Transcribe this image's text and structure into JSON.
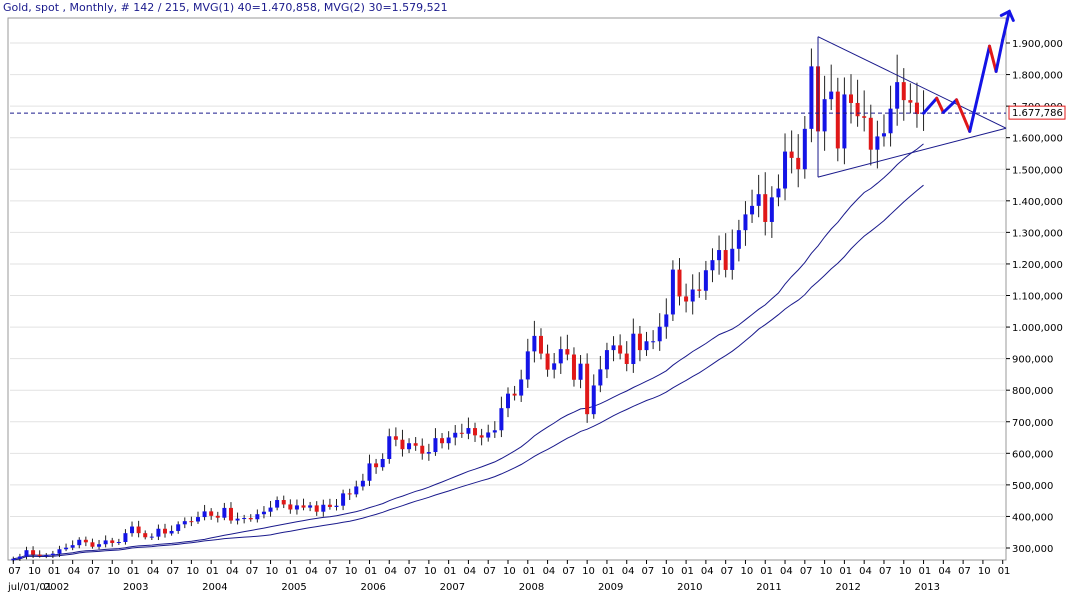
{
  "header": {
    "instrument": "Gold, spot",
    "period": "Monthly",
    "bar_count": "# 142 / 215",
    "mvg1": "MVG(1) 40=1.470,858",
    "mvg2": "MVG(2) 30=1.579,521"
  },
  "chart_data": {
    "type": "candlestick",
    "title": "Gold, spot , Monthly, # 142 / 215",
    "ylim": [
      250,
      2000
    ],
    "y_ticks": [
      300,
      400,
      500,
      600,
      700,
      800,
      900,
      1000,
      1100,
      1200,
      1300,
      1400,
      1500,
      1600,
      1700,
      1800,
      1900
    ],
    "y_tick_labels": [
      "300,000",
      "400,000",
      "500,000",
      "600,000",
      "700,000",
      "800,000",
      "900,000",
      "1.000,000",
      "1.100,000",
      "1.200,000",
      "1.300,000",
      "1.400,000",
      "1.500,000",
      "1.600,000",
      "1.700,000",
      "1.800,000",
      "1.900,000"
    ],
    "x_start": "2001-07",
    "x_end": "2014-01",
    "year_labels": [
      "jul/01/01",
      "2002",
      "2003",
      "2004",
      "2005",
      "2006",
      "2007",
      "2008",
      "2009",
      "2010",
      "2011",
      "2012",
      "2013"
    ],
    "month_labels": [
      "07",
      "10",
      "01",
      "04",
      "07",
      "10"
    ],
    "last_price": 1677.786,
    "last_price_label": "1.677,786",
    "colors": {
      "up": "#1414e6",
      "down": "#e01818",
      "ma": "#1a1a8c",
      "projection_up": "#1414e6",
      "projection_down": "#e01818",
      "dash": "#1a1a8c"
    },
    "monthly_close": [
      [
        "2001-07",
        266
      ],
      [
        "2001-08",
        273
      ],
      [
        "2001-09",
        293
      ],
      [
        "2001-10",
        279
      ],
      [
        "2001-11",
        275
      ],
      [
        "2001-12",
        277
      ],
      [
        "2002-01",
        282
      ],
      [
        "2002-02",
        296
      ],
      [
        "2002-03",
        301
      ],
      [
        "2002-04",
        309
      ],
      [
        "2002-05",
        326
      ],
      [
        "2002-06",
        318
      ],
      [
        "2002-07",
        304
      ],
      [
        "2002-08",
        312
      ],
      [
        "2002-09",
        324
      ],
      [
        "2002-10",
        316
      ],
      [
        "2002-11",
        319
      ],
      [
        "2002-12",
        347
      ],
      [
        "2003-01",
        368
      ],
      [
        "2003-02",
        347
      ],
      [
        "2003-03",
        334
      ],
      [
        "2003-04",
        336
      ],
      [
        "2003-05",
        361
      ],
      [
        "2003-06",
        346
      ],
      [
        "2003-07",
        354
      ],
      [
        "2003-08",
        375
      ],
      [
        "2003-09",
        385
      ],
      [
        "2003-10",
        384
      ],
      [
        "2003-11",
        398
      ],
      [
        "2003-12",
        416
      ],
      [
        "2004-01",
        402
      ],
      [
        "2004-02",
        396
      ],
      [
        "2004-03",
        427
      ],
      [
        "2004-04",
        387
      ],
      [
        "2004-05",
        393
      ],
      [
        "2004-06",
        395
      ],
      [
        "2004-07",
        391
      ],
      [
        "2004-08",
        407
      ],
      [
        "2004-09",
        415
      ],
      [
        "2004-10",
        428
      ],
      [
        "2004-11",
        452
      ],
      [
        "2004-12",
        438
      ],
      [
        "2005-01",
        422
      ],
      [
        "2005-02",
        435
      ],
      [
        "2005-03",
        428
      ],
      [
        "2005-04",
        435
      ],
      [
        "2005-05",
        415
      ],
      [
        "2005-06",
        437
      ],
      [
        "2005-07",
        430
      ],
      [
        "2005-08",
        434
      ],
      [
        "2005-09",
        473
      ],
      [
        "2005-10",
        470
      ],
      [
        "2005-11",
        495
      ],
      [
        "2005-12",
        513
      ],
      [
        "2006-01",
        568
      ],
      [
        "2006-02",
        556
      ],
      [
        "2006-03",
        582
      ],
      [
        "2006-04",
        654
      ],
      [
        "2006-05",
        643
      ],
      [
        "2006-06",
        613
      ],
      [
        "2006-07",
        632
      ],
      [
        "2006-08",
        624
      ],
      [
        "2006-09",
        599
      ],
      [
        "2006-10",
        604
      ],
      [
        "2006-11",
        648
      ],
      [
        "2006-12",
        632
      ],
      [
        "2007-01",
        650
      ],
      [
        "2007-02",
        665
      ],
      [
        "2007-03",
        662
      ],
      [
        "2007-04",
        680
      ],
      [
        "2007-05",
        657
      ],
      [
        "2007-06",
        650
      ],
      [
        "2007-07",
        666
      ],
      [
        "2007-08",
        673
      ],
      [
        "2007-09",
        743
      ],
      [
        "2007-10",
        789
      ],
      [
        "2007-11",
        783
      ],
      [
        "2007-12",
        834
      ],
      [
        "2008-01",
        923
      ],
      [
        "2008-02",
        972
      ],
      [
        "2008-03",
        916
      ],
      [
        "2008-04",
        865
      ],
      [
        "2008-05",
        885
      ],
      [
        "2008-06",
        930
      ],
      [
        "2008-07",
        913
      ],
      [
        "2008-08",
        833
      ],
      [
        "2008-09",
        884
      ],
      [
        "2008-10",
        724
      ],
      [
        "2008-11",
        815
      ],
      [
        "2008-12",
        866
      ],
      [
        "2009-01",
        927
      ],
      [
        "2009-02",
        942
      ],
      [
        "2009-03",
        916
      ],
      [
        "2009-04",
        883
      ],
      [
        "2009-05",
        979
      ],
      [
        "2009-06",
        927
      ],
      [
        "2009-07",
        955
      ],
      [
        "2009-08",
        955
      ],
      [
        "2009-09",
        1001
      ],
      [
        "2009-10",
        1040
      ],
      [
        "2009-11",
        1182
      ],
      [
        "2009-12",
        1097
      ],
      [
        "2010-01",
        1081
      ],
      [
        "2010-02",
        1119
      ],
      [
        "2010-03",
        1115
      ],
      [
        "2010-04",
        1180
      ],
      [
        "2010-05",
        1212
      ],
      [
        "2010-06",
        1244
      ],
      [
        "2010-07",
        1181
      ],
      [
        "2010-08",
        1248
      ],
      [
        "2010-09",
        1307
      ],
      [
        "2010-10",
        1357
      ],
      [
        "2010-11",
        1384
      ],
      [
        "2010-12",
        1421
      ],
      [
        "2011-01",
        1333
      ],
      [
        "2011-02",
        1411
      ],
      [
        "2011-03",
        1439
      ],
      [
        "2011-04",
        1556
      ],
      [
        "2011-05",
        1536
      ],
      [
        "2011-06",
        1500
      ],
      [
        "2011-07",
        1628
      ],
      [
        "2011-08",
        1826
      ],
      [
        "2011-09",
        1620
      ],
      [
        "2011-10",
        1722
      ],
      [
        "2011-11",
        1746
      ],
      [
        "2011-12",
        1566
      ],
      [
        "2012-01",
        1737
      ],
      [
        "2012-02",
        1710
      ],
      [
        "2012-03",
        1668
      ],
      [
        "2012-04",
        1663
      ],
      [
        "2012-05",
        1562
      ],
      [
        "2012-06",
        1604
      ],
      [
        "2012-07",
        1614
      ],
      [
        "2012-08",
        1692
      ],
      [
        "2012-09",
        1776
      ],
      [
        "2012-10",
        1719
      ],
      [
        "2012-11",
        1711
      ],
      [
        "2012-12",
        1675
      ],
      [
        "2013-01",
        1678
      ]
    ],
    "moving_averages": [
      {
        "name": "MVG(1) 40",
        "last_value": 1470.858
      },
      {
        "name": "MVG(2) 30",
        "last_value": 1579.521
      }
    ],
    "triangle": {
      "apex_top": [
        "2011-09",
        1920
      ],
      "apex_bottom": [
        "2011-09",
        1475
      ],
      "right_point": [
        "2014-02",
        1630
      ]
    },
    "projection": [
      [
        "2013-01",
        1678
      ],
      [
        "2013-03",
        1725
      ],
      [
        "2013-04",
        1680
      ],
      [
        "2013-06",
        1720
      ],
      [
        "2013-08",
        1620
      ],
      [
        "2013-11",
        1890
      ],
      [
        "2013-12",
        1810
      ],
      [
        "2014-01",
        1910
      ],
      [
        "2014-02",
        2000
      ]
    ]
  }
}
